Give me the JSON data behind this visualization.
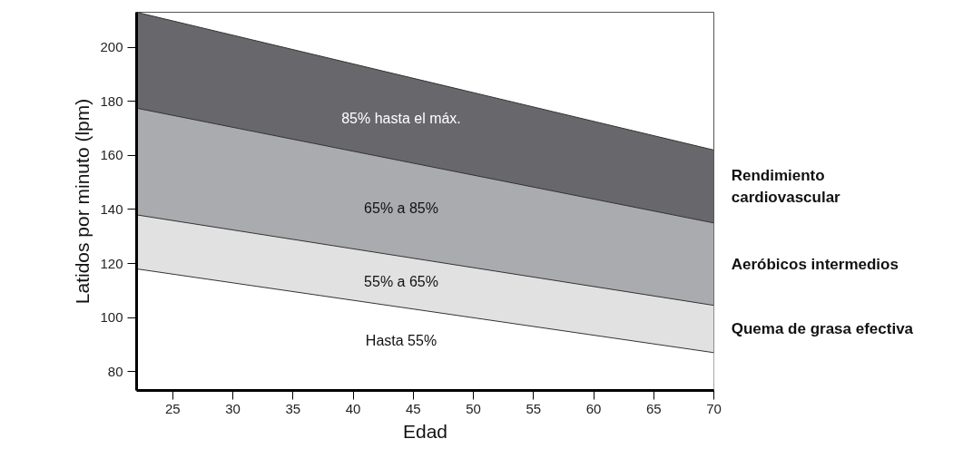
{
  "chart_data": {
    "type": "area",
    "xlabel": "Edad",
    "ylabel": "Latidos por minuto (lpm)",
    "x": [
      22,
      70
    ],
    "series": [
      {
        "name": "Rendimiento cardiovascular",
        "color": "#68686c",
        "values": [
          213,
          162
        ]
      },
      {
        "name": "Aeróbicos intermedios",
        "color": "#a9abae",
        "values": [
          177.5,
          135
        ]
      },
      {
        "name": "Quema de grasa efectiva",
        "color": "#e1e1e1",
        "values": [
          138,
          104.5
        ]
      },
      {
        "color": "#ffffff",
        "values": [
          118,
          87
        ]
      }
    ],
    "xlim": [
      22,
      70
    ],
    "ylim": [
      73,
      213
    ],
    "xticks": [
      25,
      30,
      35,
      40,
      45,
      50,
      55,
      60,
      65,
      70
    ],
    "yticks": [
      80,
      100,
      120,
      140,
      160,
      180,
      200
    ],
    "grid": false,
    "legend": false,
    "annotations": [
      "85% hasta el máx.",
      "65% a 85%",
      "55% a 65%",
      "Hasta 55%"
    ]
  }
}
